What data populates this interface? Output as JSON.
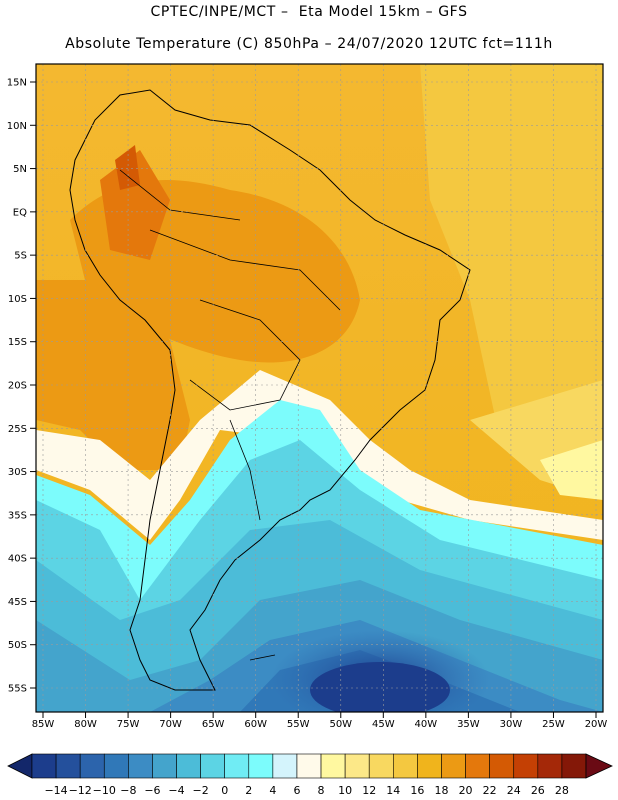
{
  "header": {
    "title_line1": "CPTEC/INPE/MCT –  Eta Model 15km – GFS",
    "title_line2": "Absolute Temperature (C) 850hPa – 24/07/2020 12UTC fct=111h"
  },
  "map": {
    "lat_labels": [
      "15N",
      "10N",
      "5N",
      "EQ",
      "5S",
      "10S",
      "15S",
      "20S",
      "25S",
      "30S",
      "35S",
      "40S",
      "45S",
      "50S",
      "55S"
    ],
    "lon_labels": [
      "85W",
      "80W",
      "75W",
      "70W",
      "65W",
      "60W",
      "55W",
      "50W",
      "45W",
      "40W",
      "35W",
      "30W",
      "25W",
      "20W"
    ],
    "lat_values": [
      15,
      10,
      5,
      0,
      -5,
      -10,
      -15,
      -20,
      -25,
      -30,
      -35,
      -40,
      -45,
      -50,
      -55
    ],
    "lon_values": [
      -85,
      -80,
      -75,
      -70,
      -65,
      -60,
      -55,
      -50,
      -45,
      -40,
      -35,
      -30,
      -25,
      -20
    ]
  },
  "colorbar": {
    "labels": [
      "-14",
      "-12",
      "-10",
      "-8",
      "-6",
      "-4",
      "-2",
      "0",
      "2",
      "4",
      "6",
      "8",
      "10",
      "12",
      "14",
      "16",
      "18",
      "20",
      "22",
      "24",
      "26",
      "28"
    ],
    "colors": [
      "#1c3d8c",
      "#24509c",
      "#2c64ac",
      "#3078b8",
      "#3c8cc4",
      "#44a4cc",
      "#4cbcd8",
      "#5cd4e4",
      "#70ecf4",
      "#7cfcfc",
      "#d4f4fc",
      "#fffaea",
      "#fff8a0",
      "#fce888",
      "#f8d860",
      "#f4c840",
      "#f0b41c",
      "#ec9a14",
      "#e4780c",
      "#d45a04",
      "#c44004",
      "#a42808",
      "#841808"
    ],
    "under_color": "#13276a",
    "over_color": "#6a0a14"
  }
}
